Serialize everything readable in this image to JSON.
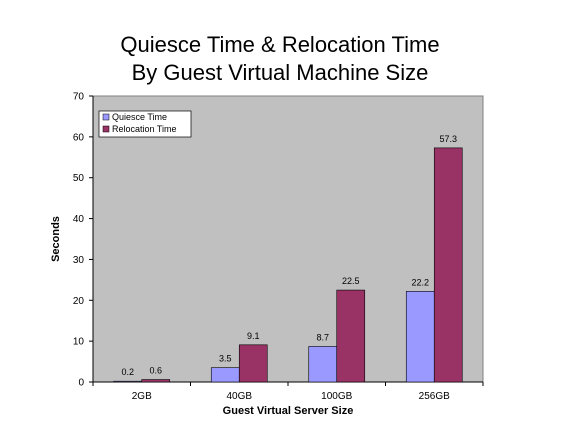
{
  "chart_data": {
    "type": "bar",
    "title_lines": [
      "Quiesce Time & Relocation Time",
      "By Guest Virtual Machine Size"
    ],
    "xlabel": "Guest Virtual Server Size",
    "ylabel": "Seconds",
    "categories": [
      "2GB",
      "40GB",
      "100GB",
      "256GB"
    ],
    "series": [
      {
        "name": "Quiesce Time",
        "values": [
          0.2,
          3.5,
          8.7,
          22.2
        ],
        "color": "#9999ff"
      },
      {
        "name": "Relocation Time",
        "values": [
          0.6,
          9.1,
          22.5,
          57.3
        ],
        "color": "#993366"
      }
    ],
    "ylim": [
      0,
      70
    ],
    "yticks": [
      0,
      10,
      20,
      30,
      40,
      50,
      60,
      70
    ],
    "grid": false,
    "plot_background": "#c0c0c0",
    "legend_position": "top-left"
  }
}
